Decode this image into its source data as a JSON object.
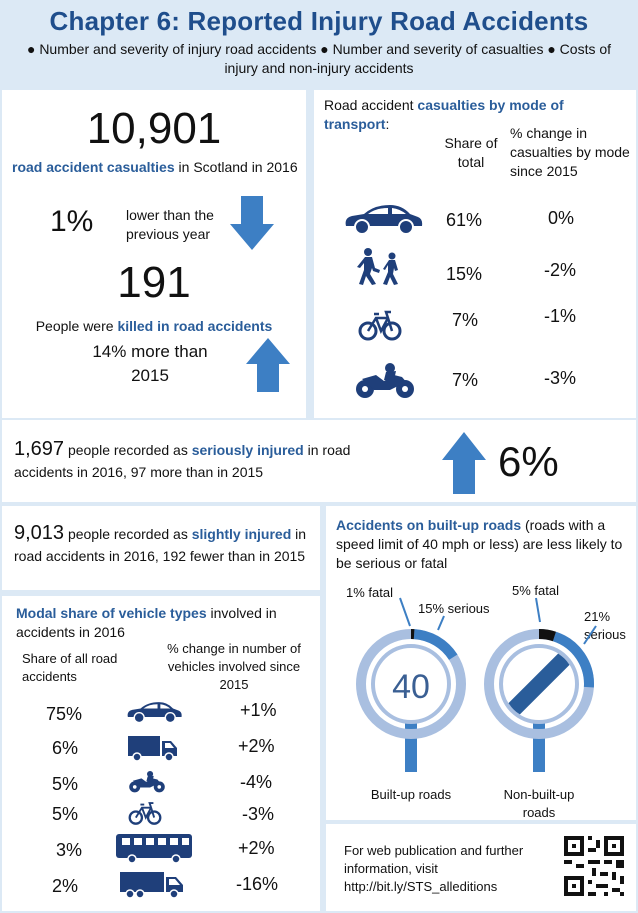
{
  "header": {
    "title": "Chapter 6: Reported Injury Road Accidents",
    "subtitle": "● Number and severity of injury road accidents ● Number and severity of casualties ● Costs of injury and non-injury accidents"
  },
  "casualties": {
    "total": "10,901",
    "total_label_bold": "road accident casualties",
    "total_label_rest": " in Scotland in 2016",
    "change_value": "1%",
    "change_text": "lower than the previous year",
    "killed": "191",
    "killed_label_pre": "People were ",
    "killed_label_bold": "killed in road accidents",
    "killed_change": "14% more than 2015"
  },
  "mode": {
    "title_pre": "Road accident ",
    "title_bold": "casualties by mode of transport",
    "title_post": ":",
    "col_share": "Share of total",
    "col_change": "% change in casualties by mode since 2015",
    "rows": [
      {
        "icon": "car-icon",
        "share": "61%",
        "change": "0%"
      },
      {
        "icon": "pedestrian-icon",
        "share": "15%",
        "change": "-2%"
      },
      {
        "icon": "bicycle-icon",
        "share": "7%",
        "change": "-1%"
      },
      {
        "icon": "motorcycle-icon",
        "share": "7%",
        "change": "-3%"
      }
    ]
  },
  "serious": {
    "count": "1,697",
    "pre": " people recorded as ",
    "bold": "seriously injured",
    "post": " in road accidents in 2016, 97 more than in 2015",
    "change": "6%"
  },
  "slight": {
    "count": "9,013",
    "pre": " people recorded as ",
    "bold": "slightly injured",
    "post": " in road accidents in 2016, 192 fewer than in 2015"
  },
  "vehicles": {
    "title_bold": "Modal share of vehicle types",
    "title_rest": " involved in accidents in 2016",
    "col_share": "Share of all road accidents",
    "col_change": "% change in number of vehicles involved since 2015",
    "rows": [
      {
        "icon": "car-icon",
        "share": "75%",
        "change": "+1%"
      },
      {
        "icon": "van-icon",
        "share": "6%",
        "change": "+2%"
      },
      {
        "icon": "motorcycle-icon",
        "share": "5%",
        "change": "-4%"
      },
      {
        "icon": "bicycle-icon",
        "share": "5%",
        "change": "-3%"
      },
      {
        "icon": "bus-icon",
        "share": "3%",
        "change": "+2%"
      },
      {
        "icon": "lorry-icon",
        "share": "2%",
        "change": "-16%"
      }
    ]
  },
  "builtup": {
    "title_bold": "Accidents on built-up roads",
    "title_rest": " (roads with a speed limit of 40 mph or less) are less likely to be serious or fatal",
    "sign1_fatal": "1% fatal",
    "sign1_serious": "15% serious",
    "sign1_speed": "40",
    "sign1_label": "Built-up roads",
    "sign2_fatal": "5% fatal",
    "sign2_serious": "21% serious",
    "sign2_label": "Non-built-up roads",
    "sign1_fatal_share": 0.01,
    "sign1_serious_share": 0.15,
    "sign2_fatal_share": 0.05,
    "sign2_serious_share": 0.21
  },
  "footer": {
    "text": "For web publication and further information, visit http://bit.ly/STS_alleditions"
  },
  "colors": {
    "accent": "#2a5d9a",
    "icon": "#1f3f7a",
    "arrow": "#3d7fc4",
    "ring": "#a9bfe0",
    "background": "#dce9f5"
  }
}
